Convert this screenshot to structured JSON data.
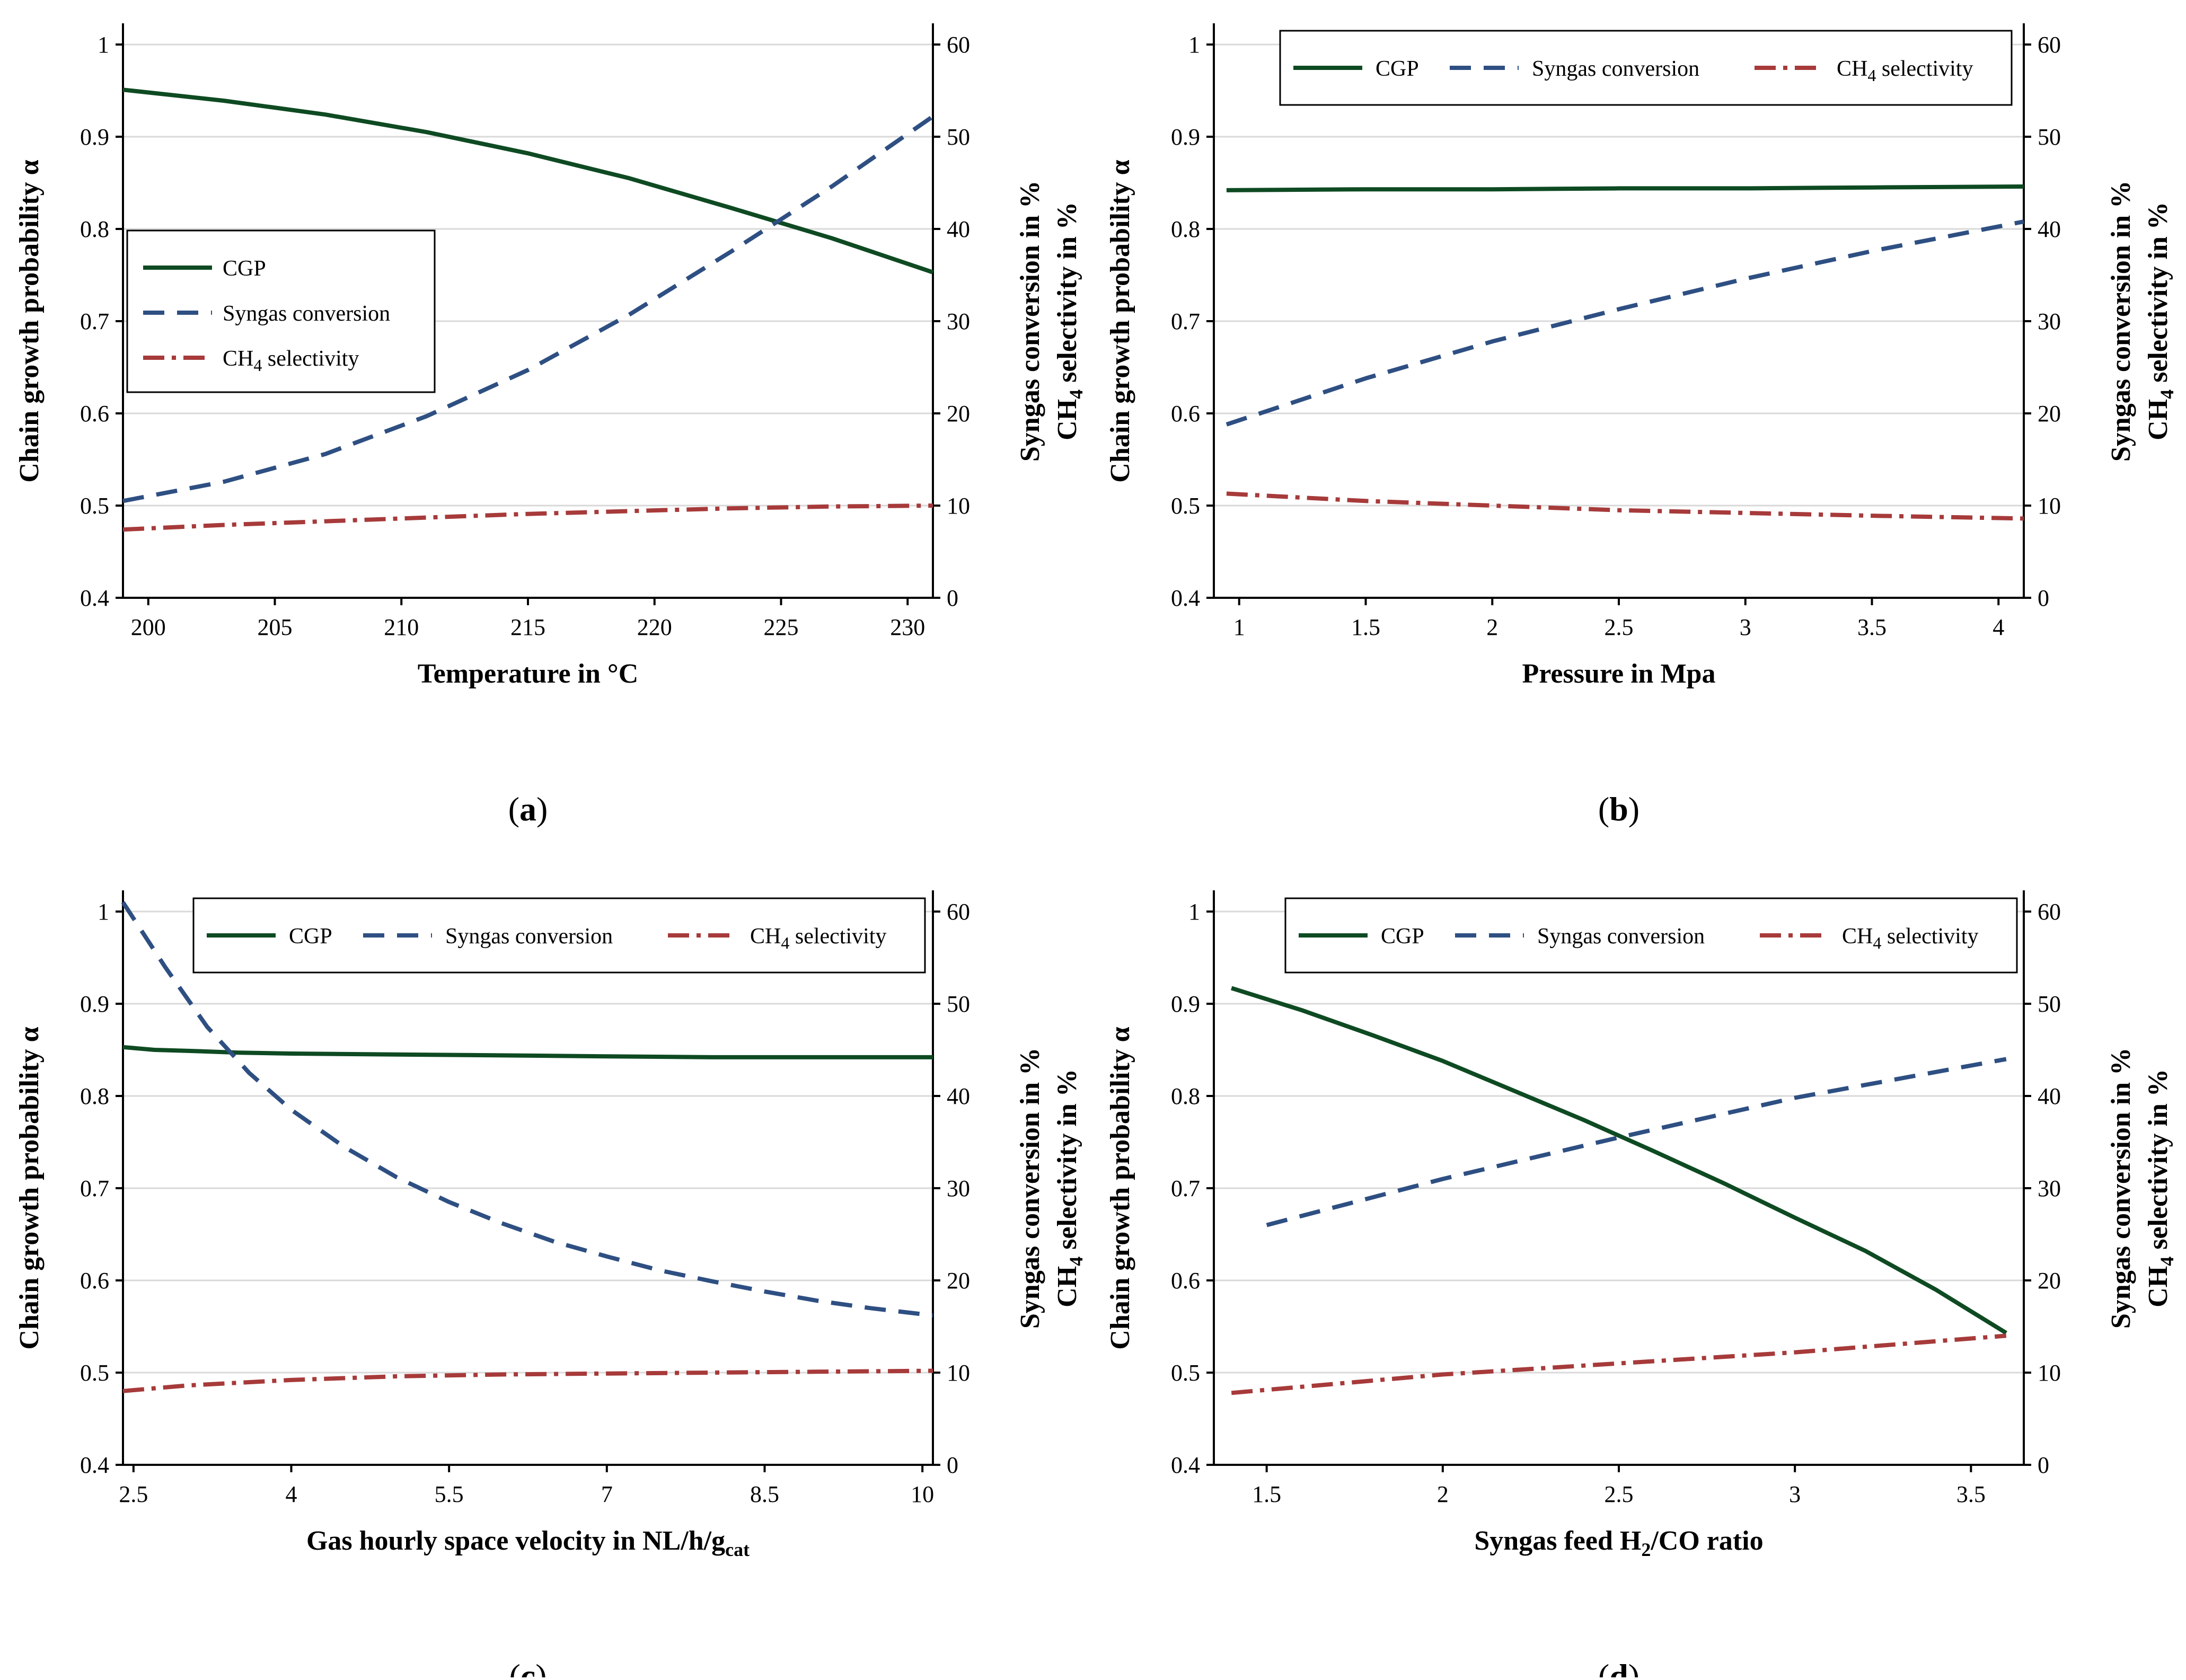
{
  "colors": {
    "cgp": "#0e4a22",
    "syngas": "#2e4f82",
    "ch4": "#a73a3a",
    "grid": "#d9d9d9",
    "axis": "#000000"
  },
  "legend_labels": {
    "cgp": "CGP",
    "syngas": "Syngas conversion",
    "ch4_main": "CH",
    "ch4_sub": "4",
    "ch4_rest": " selectivity"
  },
  "axis_titles": {
    "left": "Chain growth probability α",
    "right_line1": "Syngas conversion in %",
    "right_line2_a": "CH",
    "right_line2_sub": "4",
    "right_line2_b": " selectivity in %"
  },
  "chart_data": [
    {
      "type": "line",
      "panel_label": "(a)",
      "panel_letter": "a",
      "xlabel": "Temperature in °C",
      "x_ticks": [
        200,
        205,
        210,
        215,
        220,
        225,
        230
      ],
      "x_tick_labels": [
        "200",
        "205",
        "210",
        "215",
        "220",
        "225",
        "230"
      ],
      "xlim": [
        199,
        231
      ],
      "ylim_left": [
        0.4,
        1.0
      ],
      "y_left_ticks": [
        "0.4",
        "0.5",
        "0.6",
        "0.7",
        "0.8",
        "0.9",
        "1"
      ],
      "ylim_right": [
        0,
        60
      ],
      "y_right_ticks": [
        "0",
        "10",
        "20",
        "30",
        "40",
        "50",
        "60"
      ],
      "legend_position": "middle-left",
      "grid": true,
      "series": [
        {
          "name": "CGP",
          "axis": "left",
          "style": "solid",
          "x": [
            199,
            203,
            207,
            211,
            215,
            219,
            223,
            227,
            231
          ],
          "y": [
            0.951,
            0.939,
            0.924,
            0.905,
            0.882,
            0.855,
            0.823,
            0.79,
            0.753
          ]
        },
        {
          "name": "Syngas conversion",
          "axis": "right",
          "style": "dash",
          "x": [
            199,
            203,
            207,
            211,
            215,
            219,
            223,
            227,
            231
          ],
          "y": [
            10.5,
            12.6,
            15.6,
            19.7,
            24.7,
            30.7,
            37.5,
            44.6,
            52.2
          ]
        },
        {
          "name": "CH4 selectivity",
          "axis": "right",
          "style": "dashdot",
          "x": [
            199,
            203,
            207,
            211,
            215,
            219,
            223,
            227,
            231
          ],
          "y": [
            7.4,
            7.9,
            8.3,
            8.7,
            9.1,
            9.4,
            9.7,
            9.9,
            10.0
          ]
        }
      ]
    },
    {
      "type": "line",
      "panel_label": "(b)",
      "panel_letter": "b",
      "xlabel": "Pressure in Mpa",
      "x_ticks": [
        1,
        1.5,
        2,
        2.5,
        3,
        3.5,
        4
      ],
      "x_tick_labels": [
        "1",
        "1.5",
        "2",
        "2.5",
        "3",
        "3.5",
        "4"
      ],
      "xlim": [
        0.9,
        4.1
      ],
      "ylim_left": [
        0.4,
        1.0
      ],
      "y_left_ticks": [
        "0.4",
        "0.5",
        "0.6",
        "0.7",
        "0.8",
        "0.9",
        "1"
      ],
      "ylim_right": [
        0,
        60
      ],
      "y_right_ticks": [
        "0",
        "10",
        "20",
        "30",
        "40",
        "50",
        "60"
      ],
      "legend_position": "top",
      "grid": true,
      "series": [
        {
          "name": "CGP",
          "axis": "left",
          "style": "solid",
          "x": [
            0.95,
            1.5,
            2.0,
            2.5,
            3.0,
            3.5,
            4.1
          ],
          "y": [
            0.842,
            0.843,
            0.843,
            0.844,
            0.844,
            0.845,
            0.846
          ]
        },
        {
          "name": "Syngas conversion",
          "axis": "right",
          "style": "dash",
          "x": [
            0.95,
            1.5,
            2.0,
            2.5,
            3.0,
            3.5,
            4.1
          ],
          "y": [
            18.8,
            23.8,
            27.8,
            31.3,
            34.6,
            37.6,
            40.8
          ]
        },
        {
          "name": "CH4 selectivity",
          "axis": "right",
          "style": "dashdot",
          "x": [
            0.95,
            1.5,
            2.0,
            2.5,
            3.0,
            3.5,
            4.1
          ],
          "y": [
            11.3,
            10.5,
            10.0,
            9.5,
            9.2,
            8.9,
            8.6
          ]
        }
      ]
    },
    {
      "type": "line",
      "panel_label": "(c)",
      "panel_letter": "c",
      "xlabel_main": "Gas hourly space velocity in NL/h/g",
      "xlabel_sub": "cat",
      "x_ticks": [
        2.5,
        4,
        5.5,
        7,
        8.5,
        10
      ],
      "x_tick_labels": [
        "2.5",
        "4",
        "5.5",
        "7",
        "8.5",
        "10"
      ],
      "xlim": [
        2.4,
        10.1
      ],
      "ylim_left": [
        0.4,
        1.0
      ],
      "y_left_ticks": [
        "0.4",
        "0.5",
        "0.6",
        "0.7",
        "0.8",
        "0.9",
        "1"
      ],
      "ylim_right": [
        0,
        60
      ],
      "y_right_ticks": [
        "0",
        "10",
        "20",
        "30",
        "40",
        "50",
        "60"
      ],
      "legend_position": "top-right",
      "grid": true,
      "series": [
        {
          "name": "CGP",
          "axis": "left",
          "style": "solid",
          "x": [
            2.4,
            2.7,
            3.0,
            3.5,
            4.0,
            5.0,
            6.0,
            7.0,
            8.0,
            9.0,
            10.1
          ],
          "y": [
            0.853,
            0.85,
            0.849,
            0.847,
            0.846,
            0.845,
            0.844,
            0.843,
            0.842,
            0.842,
            0.842
          ]
        },
        {
          "name": "Syngas conversion",
          "axis": "right",
          "style": "dash",
          "x": [
            2.4,
            2.8,
            3.2,
            3.6,
            4.0,
            4.5,
            5.0,
            5.5,
            6.0,
            6.5,
            7.0,
            7.5,
            8.0,
            8.5,
            9.0,
            9.5,
            10.1
          ],
          "y": [
            61,
            54,
            47.5,
            42.5,
            38.5,
            34.5,
            31.2,
            28.5,
            26.2,
            24.2,
            22.6,
            21.1,
            19.9,
            18.8,
            17.8,
            17.0,
            16.2
          ]
        },
        {
          "name": "CH4 selectivity",
          "axis": "right",
          "style": "dashdot",
          "x": [
            2.4,
            3.0,
            3.5,
            4.0,
            5.0,
            6.0,
            7.0,
            8.0,
            9.0,
            10.1
          ],
          "y": [
            8.0,
            8.6,
            8.9,
            9.2,
            9.6,
            9.8,
            9.9,
            10.0,
            10.1,
            10.2
          ]
        }
      ]
    },
    {
      "type": "line",
      "panel_label": "(d)",
      "panel_letter": "d",
      "xlabel_main": "Syngas feed H",
      "xlabel_sub": "2",
      "xlabel_rest": "/CO ratio",
      "x_ticks": [
        1.5,
        2,
        2.5,
        3,
        3.5
      ],
      "x_tick_labels": [
        "1.5",
        "2",
        "2.5",
        "3",
        "3.5"
      ],
      "xlim": [
        1.35,
        3.65
      ],
      "ylim_left": [
        0.4,
        1.0
      ],
      "y_left_ticks": [
        "0.4",
        "0.5",
        "0.6",
        "0.7",
        "0.8",
        "0.9",
        "1"
      ],
      "ylim_right": [
        0,
        60
      ],
      "y_right_ticks": [
        "0",
        "10",
        "20",
        "30",
        "40",
        "50",
        "60"
      ],
      "legend_position": "top-right",
      "grid": true,
      "series": [
        {
          "name": "CGP",
          "axis": "left",
          "style": "solid",
          "x": [
            1.4,
            1.6,
            1.8,
            2.0,
            2.2,
            2.4,
            2.6,
            2.8,
            3.0,
            3.2,
            3.4,
            3.6
          ],
          "y": [
            0.917,
            0.893,
            0.866,
            0.838,
            0.806,
            0.774,
            0.74,
            0.705,
            0.668,
            0.632,
            0.59,
            0.543
          ]
        },
        {
          "name": "Syngas conversion",
          "axis": "right",
          "style": "dash",
          "x": [
            1.5,
            2.0,
            2.5,
            3.0,
            3.6
          ],
          "y": [
            26.0,
            31.0,
            35.5,
            39.8,
            44.0
          ]
        },
        {
          "name": "CH4 selectivity",
          "axis": "right",
          "style": "dashdot",
          "x": [
            1.4,
            2.0,
            2.5,
            3.0,
            3.6
          ],
          "y": [
            7.8,
            9.8,
            11.0,
            12.2,
            14.0
          ]
        }
      ]
    }
  ]
}
